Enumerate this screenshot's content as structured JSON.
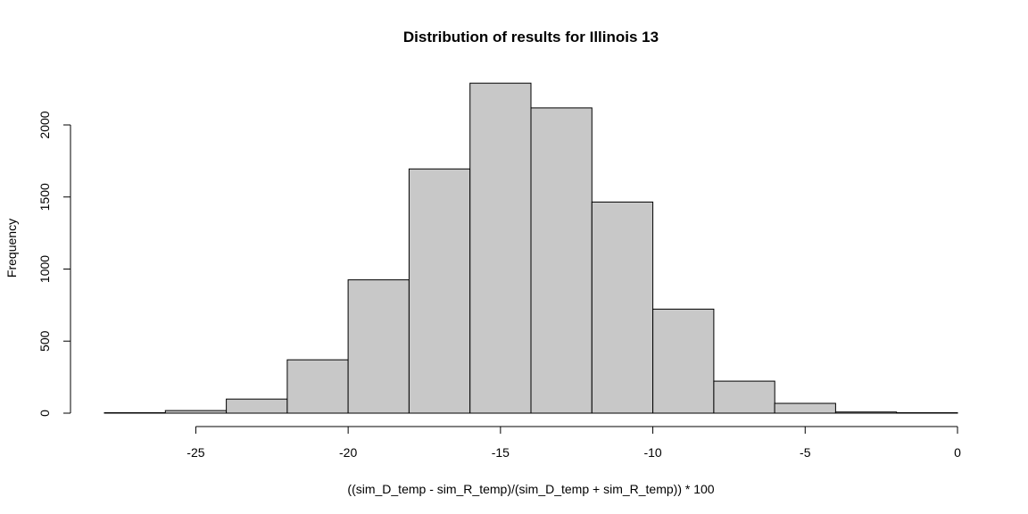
{
  "chart_data": {
    "type": "bar",
    "title": "Distribution of results for Illinois 13",
    "xlabel": "((sim_D_temp - sim_R_temp)/(sim_D_temp + sim_R_temp)) * 100",
    "ylabel": "Frequency",
    "bin_edges": [
      -28,
      -26,
      -24,
      -22,
      -20,
      -18,
      -16,
      -14,
      -12,
      -10,
      -8,
      -6,
      -4,
      -2,
      0
    ],
    "values": [
      3,
      18,
      98,
      370,
      925,
      1695,
      2290,
      2118,
      1465,
      722,
      222,
      68,
      8,
      3
    ],
    "xlim": [
      -28,
      0
    ],
    "ylim": [
      0,
      2300
    ],
    "xticks": [
      -25,
      -20,
      -15,
      -10,
      -5,
      0
    ],
    "xtick_labels": [
      "-25",
      "-20",
      "-15",
      "-10",
      "-5",
      "0"
    ],
    "yticks": [
      0,
      500,
      1000,
      1500,
      2000
    ],
    "ytick_labels": [
      "0",
      "500",
      "1000",
      "1500",
      "2000"
    ],
    "bar_color": "#c8c8c8",
    "edge_color": "#000000",
    "grid": false,
    "legend": "none"
  }
}
